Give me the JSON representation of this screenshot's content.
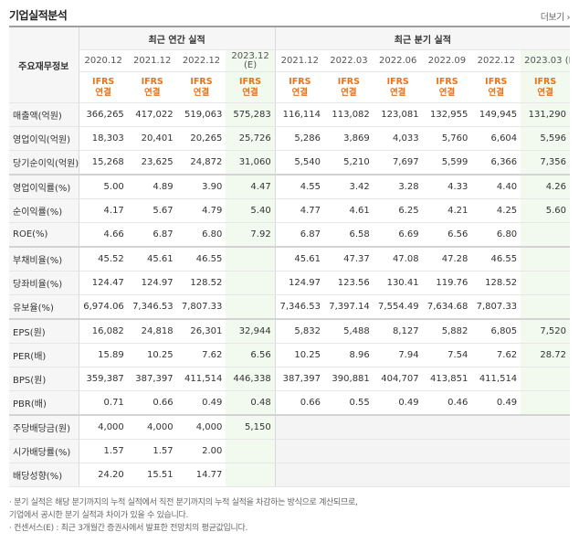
{
  "title": "기업실적분석",
  "more_label": "더보기",
  "header": {
    "row_label": "주요재무정보",
    "group_annual": "최근 연간 실적",
    "group_quarter": "최근 분기 실적",
    "periods": [
      "2020.12",
      "2021.12",
      "2022.12",
      "2023.12",
      "2021.12",
      "2022.03",
      "2022.06",
      "2022.09",
      "2022.12",
      "2023.03"
    ],
    "est_suffix": "(E)",
    "ifrs": "IFRS",
    "consolidated": "연결"
  },
  "rows": [
    {
      "label": "매출액(억원)",
      "values": [
        "366,265",
        "417,022",
        "519,063",
        "575,283",
        "116,114",
        "113,082",
        "123,081",
        "132,955",
        "149,945",
        "131,290"
      ]
    },
    {
      "label": "영업이익(억원)",
      "values": [
        "18,303",
        "20,401",
        "20,265",
        "25,726",
        "5,286",
        "3,869",
        "4,033",
        "5,760",
        "6,604",
        "5,596"
      ]
    },
    {
      "label": "당기순이익(억원)",
      "values": [
        "15,268",
        "23,625",
        "24,872",
        "31,060",
        "5,540",
        "5,210",
        "7,697",
        "5,599",
        "6,366",
        "7,356"
      ]
    },
    {
      "label": "영업이익률(%)",
      "values": [
        "5.00",
        "4.89",
        "3.90",
        "4.47",
        "4.55",
        "3.42",
        "3.28",
        "4.33",
        "4.40",
        "4.26"
      ]
    },
    {
      "label": "순이익률(%)",
      "values": [
        "4.17",
        "5.67",
        "4.79",
        "5.40",
        "4.77",
        "4.61",
        "6.25",
        "4.21",
        "4.25",
        "5.60"
      ]
    },
    {
      "label": "ROE(%)",
      "values": [
        "4.66",
        "6.87",
        "6.80",
        "7.92",
        "6.87",
        "6.58",
        "6.69",
        "6.56",
        "6.80",
        ""
      ]
    },
    {
      "label": "부채비율(%)",
      "values": [
        "45.52",
        "45.61",
        "46.55",
        "",
        "45.61",
        "47.37",
        "47.08",
        "47.28",
        "46.55",
        ""
      ]
    },
    {
      "label": "당좌비율(%)",
      "values": [
        "124.47",
        "124.97",
        "128.52",
        "",
        "124.97",
        "123.56",
        "130.41",
        "119.76",
        "128.52",
        ""
      ]
    },
    {
      "label": "유보율(%)",
      "values": [
        "6,974.06",
        "7,346.53",
        "7,807.33",
        "",
        "7,346.53",
        "7,397.14",
        "7,554.49",
        "7,634.68",
        "7,807.33",
        ""
      ]
    },
    {
      "label": "EPS(원)",
      "values": [
        "16,082",
        "24,818",
        "26,301",
        "32,944",
        "5,832",
        "5,488",
        "8,127",
        "5,882",
        "6,805",
        "7,520"
      ]
    },
    {
      "label": "PER(배)",
      "values": [
        "15.89",
        "10.25",
        "7.62",
        "6.56",
        "10.25",
        "8.96",
        "7.94",
        "7.54",
        "7.62",
        "28.72"
      ]
    },
    {
      "label": "BPS(원)",
      "values": [
        "359,387",
        "387,397",
        "411,514",
        "446,338",
        "387,397",
        "390,881",
        "404,707",
        "413,851",
        "411,514",
        ""
      ]
    },
    {
      "label": "PBR(배)",
      "values": [
        "0.71",
        "0.66",
        "0.49",
        "0.48",
        "0.66",
        "0.55",
        "0.49",
        "0.46",
        "0.49",
        ""
      ]
    },
    {
      "label": "주당배당금(원)",
      "values": [
        "4,000",
        "4,000",
        "4,000",
        "5,150",
        "",
        "",
        "",
        "",
        "",
        ""
      ]
    },
    {
      "label": "시가배당률(%)",
      "values": [
        "1.57",
        "1.57",
        "2.00",
        "",
        "",
        "",
        "",
        "",
        "",
        ""
      ]
    },
    {
      "label": "배당성향(%)",
      "values": [
        "24.20",
        "15.51",
        "14.77",
        "",
        "",
        "",
        "",
        "",
        "",
        ""
      ]
    }
  ],
  "notes": [
    "· 분기 실적은 해당 분기까지의 누적 실적에서 직전 분기까지의 누적 실적을 차감하는 방식으로 계산되므로,",
    "  기업에서 공시한 분기 실적과 차이가 있을 수 있습니다.",
    "· 컨센서스(E) : 최근 3개월간 증권사에서 발표한 전망치의 평균값입니다."
  ]
}
